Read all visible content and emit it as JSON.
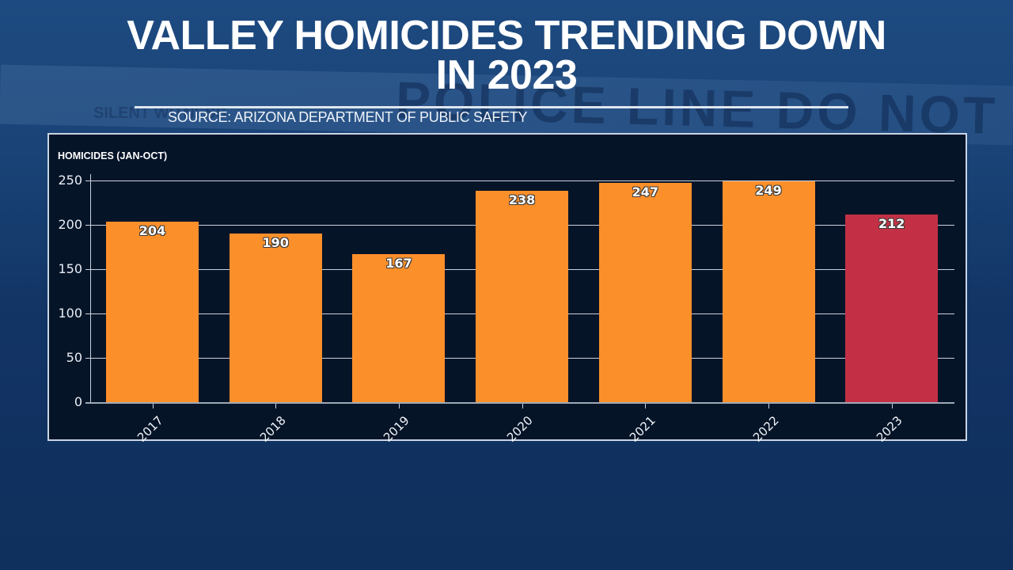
{
  "header": {
    "title_line1": "VALLEY HOMICIDES TRENDING DOWN",
    "title_line2": "IN 2023",
    "source": "SOURCE: ARIZONA DEPARTMENT OF PUBLIC SAFETY"
  },
  "background": {
    "tape_text": "POLICE LINE DO NOT",
    "tape_small_text": "SILENT WITNESS"
  },
  "colors": {
    "bar_default": "#fb8f2a",
    "bar_highlight": "#c33045",
    "panel_bg": "#061428"
  },
  "chart_data": {
    "type": "bar",
    "title": "VALLEY HOMICIDES TRENDING DOWN IN 2023",
    "subtitle": "SOURCE: ARIZONA DEPARTMENT OF PUBLIC SAFETY",
    "xlabel": "",
    "ylabel": "HOMICIDES (JAN-OCT)",
    "categories": [
      "2017",
      "2018",
      "2019",
      "2020",
      "2021",
      "2022",
      "2023"
    ],
    "values": [
      204,
      190,
      167,
      238,
      247,
      249,
      212
    ],
    "bar_colors": [
      "#fb8f2a",
      "#fb8f2a",
      "#fb8f2a",
      "#fb8f2a",
      "#fb8f2a",
      "#fb8f2a",
      "#c33045"
    ],
    "ylim": [
      0,
      250
    ],
    "yticks": [
      0,
      50,
      100,
      150,
      200,
      250
    ],
    "grid": true,
    "data_labels": true,
    "legend": null
  }
}
